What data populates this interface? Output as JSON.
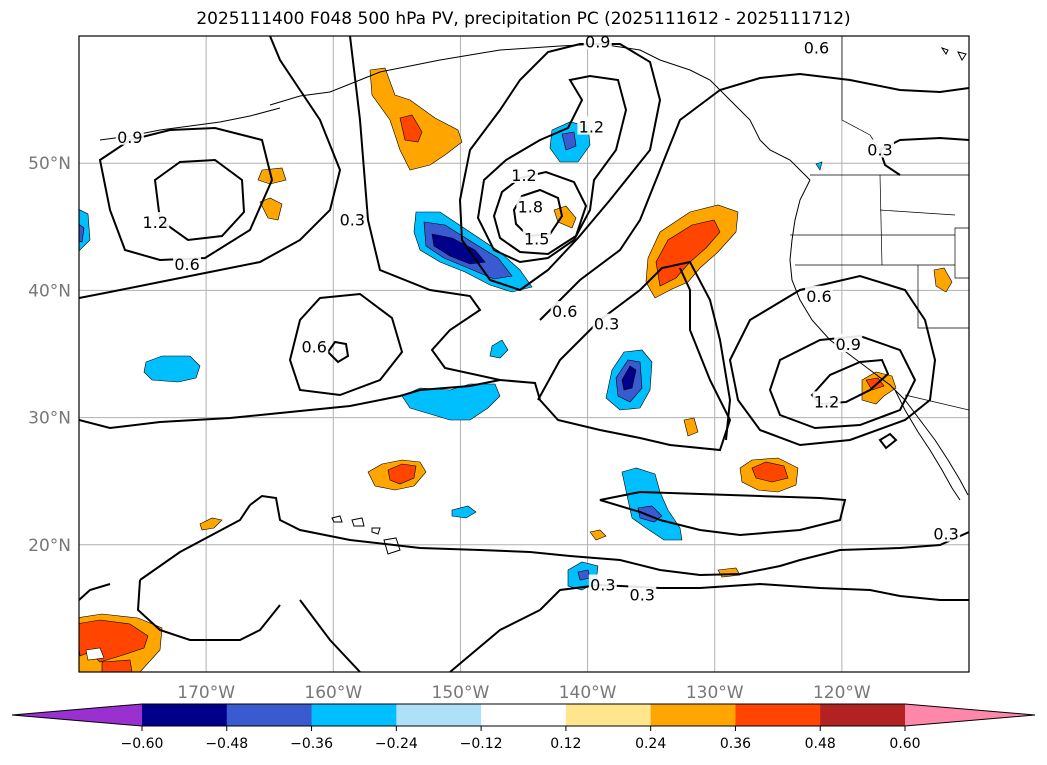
{
  "title": "2025111400 F048 500 hPa PV, precipitation PC (2025111612 - 2025111712)",
  "map": {
    "lon_range": [
      -180,
      -110
    ],
    "lat_range": [
      10,
      60
    ],
    "lat_ticks": [
      {
        "lat": 50,
        "label": "50°N"
      },
      {
        "lat": 40,
        "label": "40°N"
      },
      {
        "lat": 30,
        "label": "30°N"
      },
      {
        "lat": 20,
        "label": "20°N"
      }
    ],
    "lon_ticks": [
      {
        "lon": -170,
        "label": "170°W"
      },
      {
        "lon": -160,
        "label": "160°W"
      },
      {
        "lon": -150,
        "label": "150°W"
      },
      {
        "lon": -140,
        "label": "140°W"
      },
      {
        "lon": -130,
        "label": "130°W"
      },
      {
        "lon": -120,
        "label": "120°W"
      }
    ],
    "grid": true,
    "contour_labels": [
      {
        "text": "0.9",
        "lon": -176,
        "lat": 52
      },
      {
        "text": "1.2",
        "lon": -174,
        "lat": 45.3
      },
      {
        "text": "0.6",
        "lon": -171.5,
        "lat": 42
      },
      {
        "text": "0.3",
        "lon": -158.5,
        "lat": 45.5
      },
      {
        "text": "0.6",
        "lon": -161.5,
        "lat": 35.5
      },
      {
        "text": "1.2",
        "lon": -145,
        "lat": 49
      },
      {
        "text": "1.8",
        "lon": -144.5,
        "lat": 46.5
      },
      {
        "text": "1.5",
        "lon": -144,
        "lat": 44
      },
      {
        "text": "1.2",
        "lon": -139.7,
        "lat": 52.8
      },
      {
        "text": "0.9",
        "lon": -139.2,
        "lat": 59.5
      },
      {
        "text": "0.6",
        "lon": -122,
        "lat": 59
      },
      {
        "text": "0.3",
        "lon": -117,
        "lat": 51
      },
      {
        "text": "0.6",
        "lon": -141.8,
        "lat": 38.3
      },
      {
        "text": "0.3",
        "lon": -138.5,
        "lat": 37.3
      },
      {
        "text": "0.6",
        "lon": -121.8,
        "lat": 39.5
      },
      {
        "text": "0.9",
        "lon": -119.5,
        "lat": 35.7
      },
      {
        "text": "1.2",
        "lon": -121.2,
        "lat": 31.2
      },
      {
        "text": "0.3",
        "lon": -138.8,
        "lat": 16.8
      },
      {
        "text": "0.3",
        "lon": -135.7,
        "lat": 16
      },
      {
        "text": "0.3",
        "lon": -111.8,
        "lat": 20.8
      }
    ],
    "contour_levels": [
      0.3,
      0.6,
      0.9,
      1.2,
      1.5,
      1.8
    ],
    "fill_colors": {
      "neg_060": "#9a30d0",
      "neg_048": "#00008b",
      "neg_036": "#3a5bd0",
      "neg_024": "#00bfff",
      "neg_012": "#aee0f8",
      "pos_012": "#ffe68c",
      "pos_024": "#ffa500",
      "pos_036": "#ff4500",
      "pos_048": "#b22222",
      "pos_060": "#ff88aa"
    }
  },
  "colorbar": {
    "boundaries": [
      "−0.60",
      "−0.48",
      "−0.36",
      "−0.24",
      "−0.12",
      "0.12",
      "0.24",
      "0.36",
      "0.48",
      "0.60"
    ],
    "colors": [
      "#9a30d0",
      "#00008b",
      "#3a5bd0",
      "#00bfff",
      "#aee0f8",
      "#ffffff",
      "#ffe68c",
      "#ffa500",
      "#ff4500",
      "#b22222",
      "#ff88aa"
    ],
    "extend": "both"
  }
}
